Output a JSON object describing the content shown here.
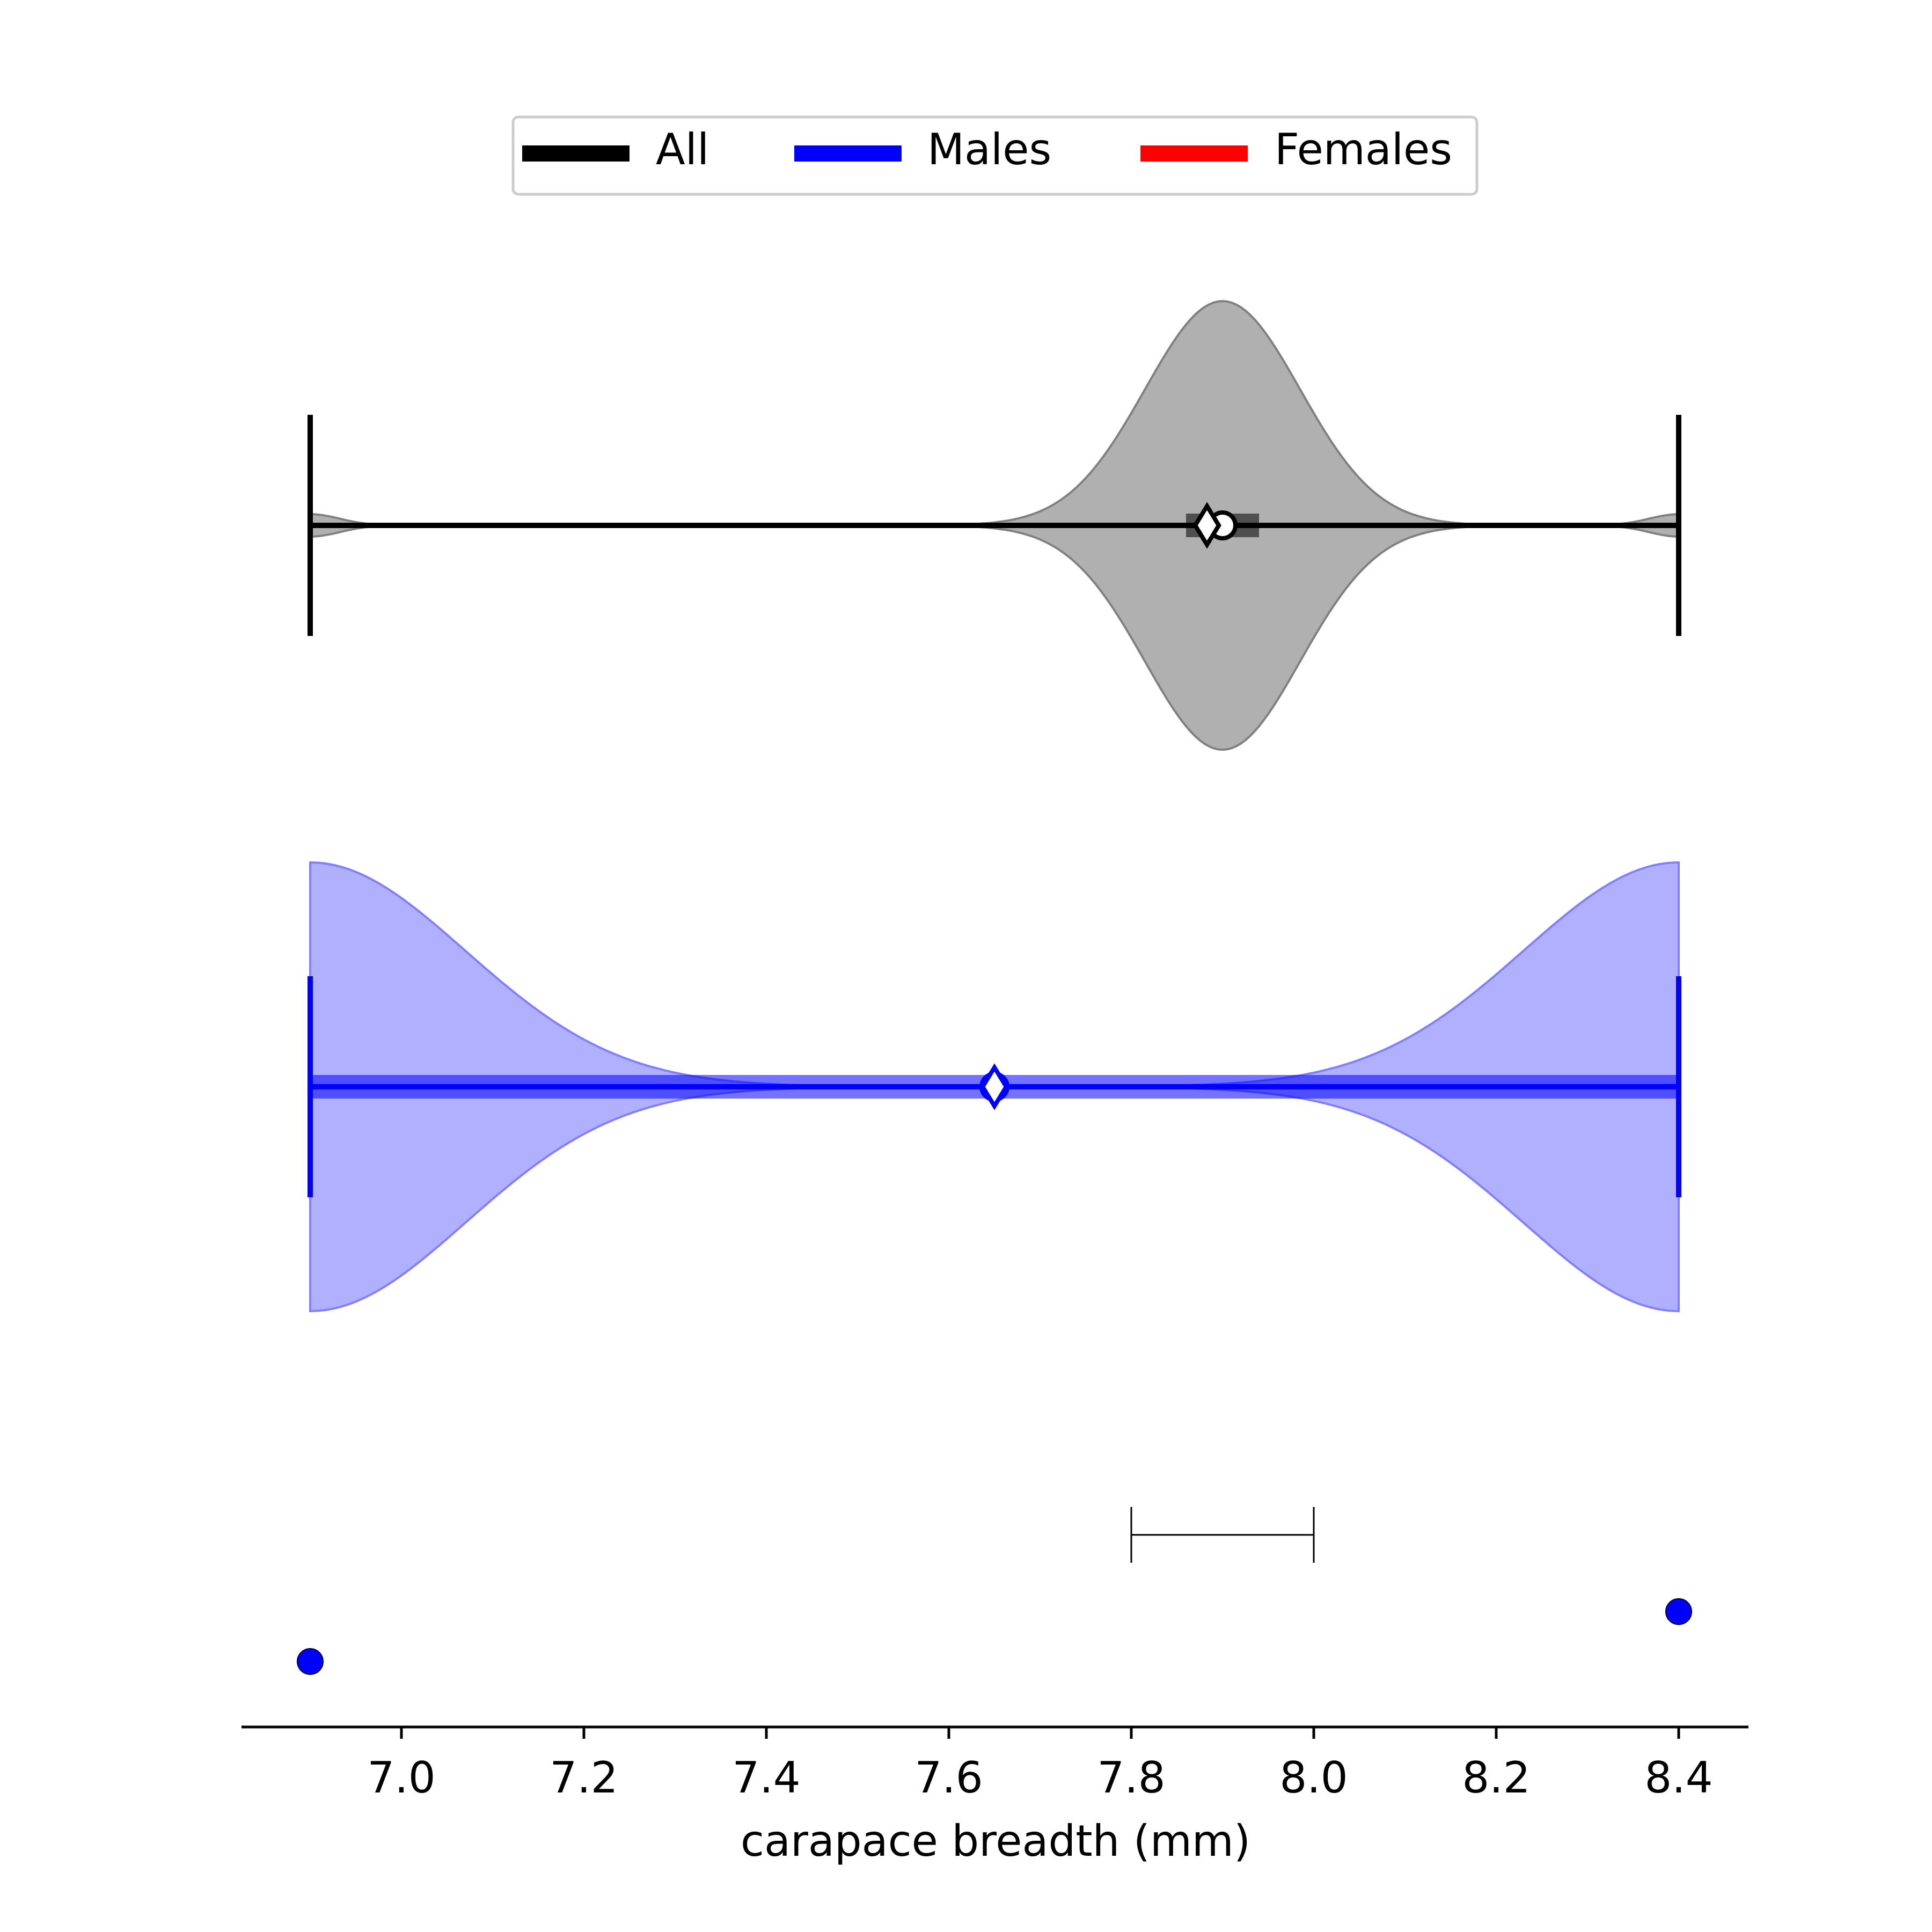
{
  "chart_data": {
    "type": "violin",
    "legend": {
      "placement": "top-center",
      "entries": [
        {
          "label": "All",
          "color": "#000000"
        },
        {
          "label": "Males",
          "color": "#0000ff"
        },
        {
          "label": "Females",
          "color": "#ff0000"
        }
      ]
    },
    "xlabel": "carapace breadth (mm)",
    "xlim": [
      6.83,
      8.48
    ],
    "xticks": [
      7.0,
      7.2,
      7.4,
      7.6,
      7.8,
      8.0,
      8.2,
      8.4
    ],
    "xtick_labels": [
      "7.0",
      "7.2",
      "7.4",
      "7.6",
      "7.8",
      "8.0",
      "8.2",
      "8.4"
    ],
    "grid": false,
    "violins": [
      {
        "group": "All",
        "color": "#000000",
        "fill": "#b0b0b0",
        "min": 6.9,
        "max": 8.4,
        "median": 7.9,
        "mean": 7.883,
        "iqr": [
          7.86,
          7.94
        ],
        "density_peaks": [
          {
            "x": 6.9,
            "height": 0.05
          },
          {
            "x": 7.9,
            "height": 1.0
          },
          {
            "x": 8.4,
            "height": 0.05
          }
        ]
      },
      {
        "group": "Males",
        "color": "#0000ff",
        "fill": "#b0b0ff",
        "min": 6.9,
        "max": 8.4,
        "median": 7.65,
        "mean": 7.65,
        "iqr": [
          6.9,
          8.4
        ],
        "density_peaks": [
          {
            "x": 6.9,
            "height": 1.0
          },
          {
            "x": 8.4,
            "height": 1.0
          }
        ]
      }
    ],
    "points": [
      {
        "group": "Males",
        "x": 6.9
      },
      {
        "group": "Males",
        "x": 8.4
      }
    ],
    "scale_bar": {
      "from": 7.8,
      "to": 8.0
    }
  }
}
